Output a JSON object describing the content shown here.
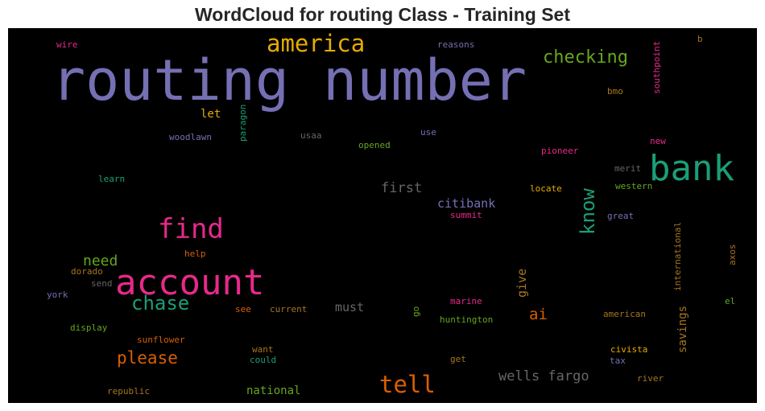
{
  "chart_data": {
    "type": "wordcloud",
    "title": "WordCloud for routing Class - Training Set",
    "background": "#000000",
    "palette": [
      "#7570b3",
      "#d95f02",
      "#1b9e77",
      "#e7298a",
      "#66a61e",
      "#e6ab02",
      "#a6761d",
      "#666666"
    ],
    "words": [
      {
        "text": "routing number",
        "color": "#7570b3"
      },
      {
        "text": "bank",
        "color": "#1b9e77"
      },
      {
        "text": "account",
        "color": "#e7298a"
      },
      {
        "text": "find",
        "color": "#e7298a"
      },
      {
        "text": "america",
        "color": "#e6ab02"
      },
      {
        "text": "tell",
        "color": "#d95f02"
      },
      {
        "text": "chase",
        "color": "#1b9e77"
      },
      {
        "text": "checking",
        "color": "#66a61e"
      },
      {
        "text": "know",
        "color": "#1b9e77"
      },
      {
        "text": "please",
        "color": "#d95f02"
      },
      {
        "text": "wells fargo",
        "color": "#666666"
      },
      {
        "text": "first",
        "color": "#666666"
      },
      {
        "text": "need",
        "color": "#66a61e"
      },
      {
        "text": "citibank",
        "color": "#7570b3"
      },
      {
        "text": "ai",
        "color": "#d95f02"
      },
      {
        "text": "must",
        "color": "#666666"
      },
      {
        "text": "savings",
        "color": "#a6761d"
      },
      {
        "text": "national",
        "color": "#66a61e"
      },
      {
        "text": "give",
        "color": "#a6761d"
      },
      {
        "text": "let",
        "color": "#e6ab02"
      },
      {
        "text": "woodlawn",
        "color": "#7570b3"
      },
      {
        "text": "paragon",
        "color": "#1b9e77"
      },
      {
        "text": "usaa",
        "color": "#666666"
      },
      {
        "text": "opened",
        "color": "#66a61e"
      },
      {
        "text": "use",
        "color": "#7570b3"
      },
      {
        "text": "reasons",
        "color": "#7570b3"
      },
      {
        "text": "wire",
        "color": "#e7298a"
      },
      {
        "text": "southpoint",
        "color": "#e7298a"
      },
      {
        "text": "b",
        "color": "#a6761d"
      },
      {
        "text": "bmo",
        "color": "#a6761d"
      },
      {
        "text": "pioneer",
        "color": "#e7298a"
      },
      {
        "text": "new",
        "color": "#e7298a"
      },
      {
        "text": "merit",
        "color": "#666666"
      },
      {
        "text": "learn",
        "color": "#1b9e77"
      },
      {
        "text": "locate",
        "color": "#e6ab02"
      },
      {
        "text": "western",
        "color": "#66a61e"
      },
      {
        "text": "summit",
        "color": "#e7298a"
      },
      {
        "text": "great",
        "color": "#7570b3"
      },
      {
        "text": "international",
        "color": "#a6761d"
      },
      {
        "text": "axos",
        "color": "#a6761d"
      },
      {
        "text": "help",
        "color": "#d95f02"
      },
      {
        "text": "dorado",
        "color": "#a6761d"
      },
      {
        "text": "send",
        "color": "#666666"
      },
      {
        "text": "york",
        "color": "#7570b3"
      },
      {
        "text": "see",
        "color": "#d95f02"
      },
      {
        "text": "current",
        "color": "#a6761d"
      },
      {
        "text": "go",
        "color": "#66a61e"
      },
      {
        "text": "marine",
        "color": "#e7298a"
      },
      {
        "text": "el",
        "color": "#66a61e"
      },
      {
        "text": "american",
        "color": "#a6761d"
      },
      {
        "text": "huntington",
        "color": "#66a61e"
      },
      {
        "text": "display",
        "color": "#66a61e"
      },
      {
        "text": "sunflower",
        "color": "#d95f02"
      },
      {
        "text": "want",
        "color": "#a6761d"
      },
      {
        "text": "could",
        "color": "#1b9e77"
      },
      {
        "text": "get",
        "color": "#a6761d"
      },
      {
        "text": "civista",
        "color": "#e6ab02"
      },
      {
        "text": "tax",
        "color": "#7570b3"
      },
      {
        "text": "river",
        "color": "#a6761d"
      },
      {
        "text": "republic",
        "color": "#a6761d"
      }
    ]
  }
}
